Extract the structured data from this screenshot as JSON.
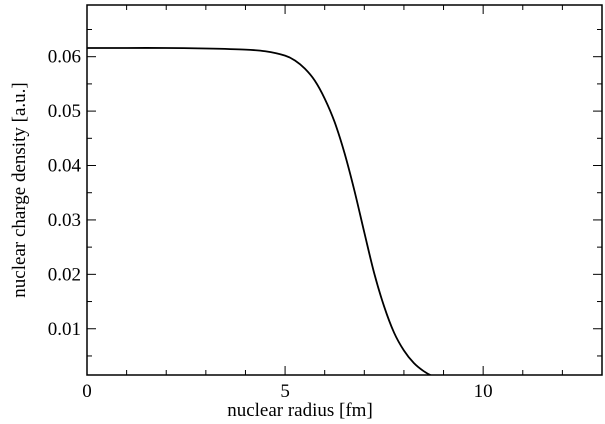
{
  "chart_data": {
    "type": "line",
    "xlabel": "nuclear radius [fm]",
    "ylabel": "nuclear charge density [a.u.]",
    "xlim": [
      0,
      13
    ],
    "ylim": [
      0.0015,
      0.0695
    ],
    "x_ticks": [
      {
        "value": 0,
        "label": "0"
      },
      {
        "value": 5,
        "label": "5"
      },
      {
        "value": 10,
        "label": "10"
      }
    ],
    "x_minor_step": 1,
    "y_ticks": [
      {
        "value": 0.01,
        "label": "0.01"
      },
      {
        "value": 0.02,
        "label": "0.02"
      },
      {
        "value": 0.03,
        "label": "0.03"
      },
      {
        "value": 0.04,
        "label": "0.04"
      },
      {
        "value": 0.05,
        "label": "0.05"
      },
      {
        "value": 0.06,
        "label": "0.06"
      }
    ],
    "y_minor_step": 0.005,
    "grid": false,
    "series": [
      {
        "color": "#000000",
        "x": [
          0,
          1,
          2,
          3,
          4,
          4.5,
          5,
          5.25,
          5.5,
          5.75,
          6,
          6.25,
          6.5,
          6.75,
          7,
          7.25,
          7.5,
          7.75,
          8,
          8.25,
          8.5,
          8.75,
          9
        ],
        "y": [
          0.0616,
          0.0616,
          0.0616,
          0.0615,
          0.0613,
          0.061,
          0.0602,
          0.0593,
          0.0578,
          0.0556,
          0.0523,
          0.048,
          0.0423,
          0.0354,
          0.0277,
          0.0202,
          0.0141,
          0.0093,
          0.006,
          0.0037,
          0.0022,
          0.0012,
          0.0006
        ]
      }
    ]
  }
}
